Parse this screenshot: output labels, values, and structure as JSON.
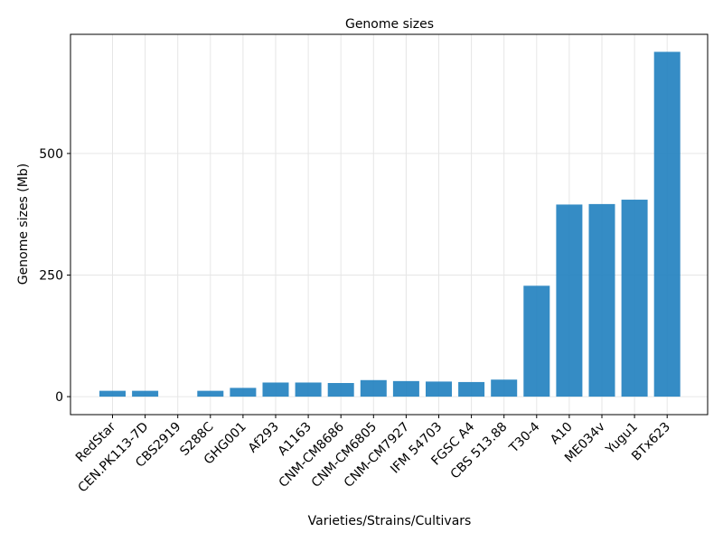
{
  "chart_data": {
    "type": "bar",
    "title": "Genome sizes",
    "xlabel": "Varieties/Strains/Cultivars",
    "ylabel": "Genome sizes (Mb)",
    "categories": [
      "RedStar",
      "CEN.PK113-7D",
      "CBS2919",
      "S288C",
      "GHG001",
      "Af293",
      "A1163",
      "CNM-CM8686",
      "CNM-CM6805",
      "CNM-CM7927",
      "IFM 54703",
      "FGSC A4",
      "CBS 513.88",
      "T30-4",
      "A10",
      "ME034v",
      "Yugu1",
      "BTx623"
    ],
    "values": [
      12,
      12,
      0,
      12,
      18,
      29,
      29,
      28,
      34,
      32,
      31,
      30,
      35,
      228,
      395,
      396,
      405,
      709
    ],
    "yticks": [
      0,
      250,
      500
    ],
    "ylim": [
      -37,
      745
    ],
    "grid": true,
    "color": "#1f7fbf"
  }
}
